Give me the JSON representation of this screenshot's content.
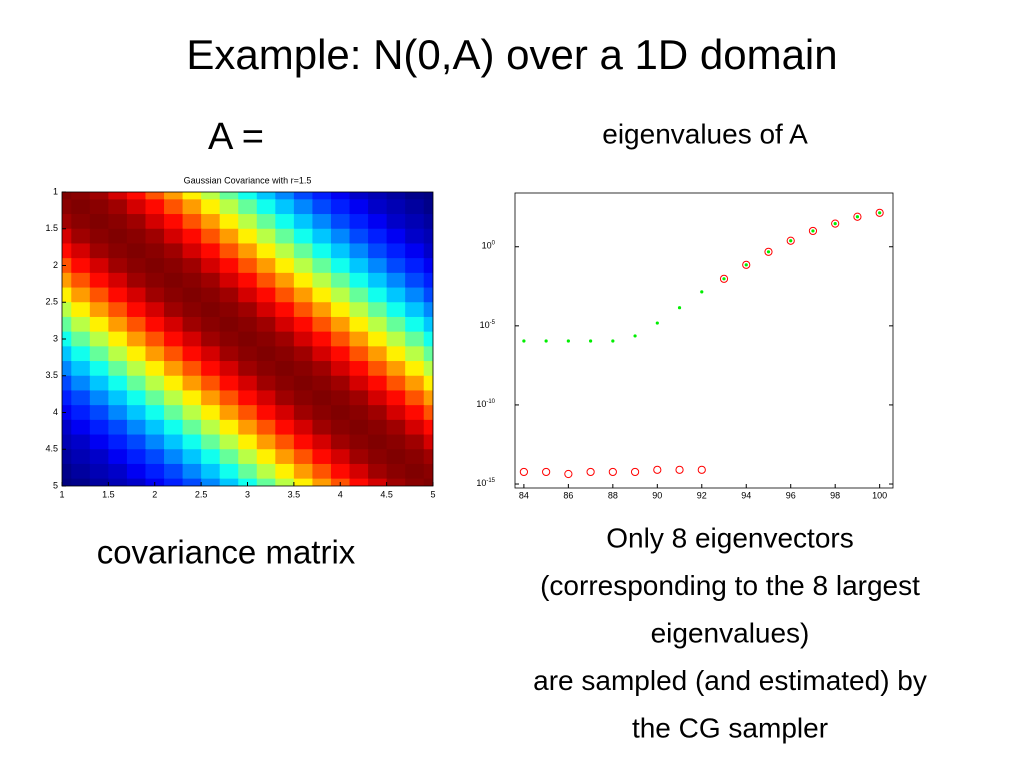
{
  "slide": {
    "title": "Example: N(0,A) over a 1D domain",
    "left_heading": "A =",
    "right_heading": "eigenvalues of A",
    "left_caption": "covariance matrix",
    "right_caption": [
      "Only 8 eigenvectors",
      "(corresponding to the 8 largest",
      "eigenvalues)",
      "are sampled (and estimated) by",
      "the CG sampler"
    ]
  },
  "chart_data": [
    {
      "type": "heatmap",
      "title": "Gaussian Covariance with r=1.5",
      "colormap": "jet",
      "yreverse": true,
      "x": [
        1,
        1.2,
        1.4,
        1.6,
        1.8,
        2,
        2.2,
        2.4,
        2.6,
        2.8,
        3,
        3.2,
        3.4,
        3.6,
        3.8,
        4,
        4.2,
        4.4,
        4.6,
        4.8,
        5
      ],
      "y": [
        1,
        1.2,
        1.4,
        1.6,
        1.8,
        2,
        2.2,
        2.4,
        2.6,
        2.8,
        3,
        3.2,
        3.4,
        3.6,
        3.8,
        4,
        4.2,
        4.4,
        4.6,
        4.8,
        5
      ],
      "xlim": [
        1,
        5
      ],
      "ylim": [
        1,
        5
      ],
      "xticks": [
        1,
        1.5,
        2,
        2.5,
        3,
        3.5,
        4,
        4.5,
        5
      ],
      "yticks": [
        1,
        1.5,
        2,
        2.5,
        3,
        3.5,
        4,
        4.5,
        5
      ],
      "z": [
        [
          1,
          0.99,
          0.97,
          0.92,
          0.87,
          0.8,
          0.73,
          0.65,
          0.57,
          0.49,
          0.41,
          0.34,
          0.28,
          0.22,
          0.18,
          0.14,
          0.1,
          0.08,
          0.06,
          0.04,
          0.03
        ],
        [
          0.99,
          1,
          0.99,
          0.97,
          0.92,
          0.87,
          0.8,
          0.73,
          0.65,
          0.57,
          0.49,
          0.41,
          0.34,
          0.28,
          0.22,
          0.18,
          0.14,
          0.1,
          0.08,
          0.06,
          0.04
        ],
        [
          0.97,
          0.99,
          1,
          0.99,
          0.97,
          0.92,
          0.87,
          0.8,
          0.73,
          0.65,
          0.57,
          0.49,
          0.41,
          0.34,
          0.28,
          0.22,
          0.18,
          0.14,
          0.1,
          0.08,
          0.06
        ],
        [
          0.92,
          0.97,
          0.99,
          1,
          0.99,
          0.97,
          0.92,
          0.87,
          0.8,
          0.73,
          0.65,
          0.57,
          0.49,
          0.41,
          0.34,
          0.28,
          0.22,
          0.18,
          0.14,
          0.1,
          0.08
        ],
        [
          0.87,
          0.92,
          0.97,
          0.99,
          1,
          0.99,
          0.97,
          0.92,
          0.87,
          0.8,
          0.73,
          0.65,
          0.57,
          0.49,
          0.41,
          0.34,
          0.28,
          0.22,
          0.18,
          0.14,
          0.1
        ],
        [
          0.8,
          0.87,
          0.92,
          0.97,
          0.99,
          1,
          0.99,
          0.97,
          0.92,
          0.87,
          0.8,
          0.73,
          0.65,
          0.57,
          0.49,
          0.41,
          0.34,
          0.28,
          0.22,
          0.18,
          0.14
        ],
        [
          0.73,
          0.8,
          0.87,
          0.92,
          0.97,
          0.99,
          1,
          0.99,
          0.97,
          0.92,
          0.87,
          0.8,
          0.73,
          0.65,
          0.57,
          0.49,
          0.41,
          0.34,
          0.28,
          0.22,
          0.18
        ],
        [
          0.65,
          0.73,
          0.8,
          0.87,
          0.92,
          0.97,
          0.99,
          1,
          0.99,
          0.97,
          0.92,
          0.87,
          0.8,
          0.73,
          0.65,
          0.57,
          0.49,
          0.41,
          0.34,
          0.28,
          0.22
        ],
        [
          0.57,
          0.65,
          0.73,
          0.8,
          0.87,
          0.92,
          0.97,
          0.99,
          1,
          0.99,
          0.97,
          0.92,
          0.87,
          0.8,
          0.73,
          0.65,
          0.57,
          0.49,
          0.41,
          0.34,
          0.28
        ],
        [
          0.49,
          0.57,
          0.65,
          0.73,
          0.8,
          0.87,
          0.92,
          0.97,
          0.99,
          1,
          0.99,
          0.97,
          0.92,
          0.87,
          0.8,
          0.73,
          0.65,
          0.57,
          0.49,
          0.41,
          0.34
        ],
        [
          0.41,
          0.49,
          0.57,
          0.65,
          0.73,
          0.8,
          0.87,
          0.92,
          0.97,
          0.99,
          1,
          0.99,
          0.97,
          0.92,
          0.87,
          0.8,
          0.73,
          0.65,
          0.57,
          0.49,
          0.41
        ],
        [
          0.34,
          0.41,
          0.49,
          0.57,
          0.65,
          0.73,
          0.8,
          0.87,
          0.92,
          0.97,
          0.99,
          1,
          0.99,
          0.97,
          0.92,
          0.87,
          0.8,
          0.73,
          0.65,
          0.57,
          0.49
        ],
        [
          0.28,
          0.34,
          0.41,
          0.49,
          0.57,
          0.65,
          0.73,
          0.8,
          0.87,
          0.92,
          0.97,
          0.99,
          1,
          0.99,
          0.97,
          0.92,
          0.87,
          0.8,
          0.73,
          0.65,
          0.57
        ],
        [
          0.22,
          0.28,
          0.34,
          0.41,
          0.49,
          0.57,
          0.65,
          0.73,
          0.8,
          0.87,
          0.92,
          0.97,
          0.99,
          1,
          0.99,
          0.97,
          0.92,
          0.87,
          0.8,
          0.73,
          0.65
        ],
        [
          0.18,
          0.22,
          0.28,
          0.34,
          0.41,
          0.49,
          0.57,
          0.65,
          0.73,
          0.8,
          0.87,
          0.92,
          0.97,
          0.99,
          1,
          0.99,
          0.97,
          0.92,
          0.87,
          0.8,
          0.73
        ],
        [
          0.14,
          0.18,
          0.22,
          0.28,
          0.34,
          0.41,
          0.49,
          0.57,
          0.65,
          0.73,
          0.8,
          0.87,
          0.92,
          0.97,
          0.99,
          1,
          0.99,
          0.97,
          0.92,
          0.87,
          0.8
        ],
        [
          0.1,
          0.14,
          0.18,
          0.22,
          0.28,
          0.34,
          0.41,
          0.49,
          0.57,
          0.65,
          0.73,
          0.8,
          0.87,
          0.92,
          0.97,
          0.99,
          1,
          0.99,
          0.97,
          0.92,
          0.87
        ],
        [
          0.08,
          0.1,
          0.14,
          0.18,
          0.22,
          0.28,
          0.34,
          0.41,
          0.49,
          0.57,
          0.65,
          0.73,
          0.8,
          0.87,
          0.92,
          0.97,
          0.99,
          1,
          0.99,
          0.97,
          0.92
        ],
        [
          0.06,
          0.08,
          0.1,
          0.14,
          0.18,
          0.22,
          0.28,
          0.34,
          0.41,
          0.49,
          0.57,
          0.65,
          0.73,
          0.8,
          0.87,
          0.92,
          0.97,
          0.99,
          1,
          0.99,
          0.97
        ],
        [
          0.04,
          0.06,
          0.08,
          0.1,
          0.14,
          0.18,
          0.22,
          0.28,
          0.34,
          0.41,
          0.49,
          0.57,
          0.65,
          0.73,
          0.8,
          0.87,
          0.92,
          0.97,
          0.99,
          1,
          0.99
        ],
        [
          0.03,
          0.04,
          0.06,
          0.08,
          0.1,
          0.14,
          0.18,
          0.22,
          0.28,
          0.34,
          0.41,
          0.49,
          0.57,
          0.65,
          0.73,
          0.8,
          0.87,
          0.92,
          0.97,
          0.99,
          1
        ]
      ]
    },
    {
      "type": "scatter",
      "log_y": true,
      "x": [
        84,
        85,
        86,
        87,
        88,
        89,
        90,
        91,
        92,
        93,
        94,
        95,
        96,
        97,
        98,
        99,
        100
      ],
      "xlim": [
        83.6,
        100.6
      ],
      "ylim": [
        5.6e-16,
        2500
      ],
      "xticks": [
        84,
        86,
        88,
        90,
        92,
        94,
        96,
        98,
        100
      ],
      "yticks": [
        {
          "value": 1,
          "label": "10",
          "sup": "0"
        },
        {
          "value": 1e-05,
          "label": "10",
          "sup": "-5"
        },
        {
          "value": 1e-10,
          "label": "10",
          "sup": "-10"
        },
        {
          "value": 1e-15,
          "label": "10",
          "sup": "-15"
        }
      ],
      "series": [
        {
          "color": "#00ee00",
          "marker": "dot",
          "values": [
            1.1e-06,
            1.1e-06,
            1.1e-06,
            1.1e-06,
            1.1e-06,
            2.3e-06,
            1.5e-05,
            0.00014,
            0.0014,
            0.0094,
            0.072,
            0.48,
            2.4,
            10,
            29,
            79,
            140
          ]
        },
        {
          "color": "#ff0000",
          "marker": "circle",
          "values": [
            5.8e-15,
            5.8e-15,
            4.3e-15,
            5.8e-15,
            5.8e-15,
            5.8e-15,
            7.9e-15,
            7.9e-15,
            7.9e-15,
            0.0094,
            0.072,
            0.48,
            2.4,
            10,
            29,
            79,
            140
          ]
        }
      ]
    }
  ]
}
